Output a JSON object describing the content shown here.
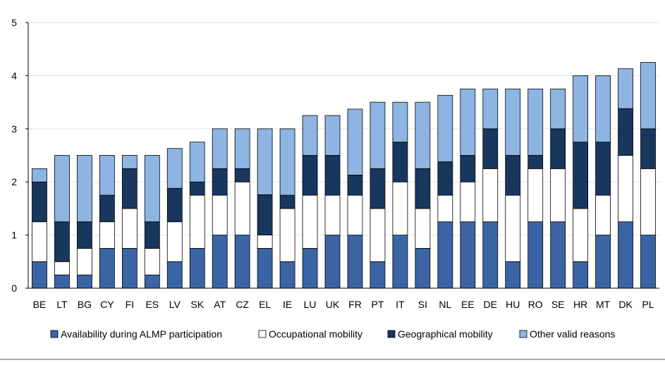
{
  "chart_data": {
    "type": "bar",
    "stacked": true,
    "title": "",
    "xlabel": "",
    "ylabel": "",
    "ylim": [
      0,
      5
    ],
    "yticks": [
      0,
      1,
      2,
      3,
      4,
      5
    ],
    "grid": true,
    "legend_position": "bottom",
    "categories": [
      "BE",
      "LT",
      "BG",
      "CY",
      "FI",
      "ES",
      "LV",
      "SK",
      "AT",
      "CZ",
      "EL",
      "IE",
      "LU",
      "UK",
      "FR",
      "PT",
      "IT",
      "SI",
      "NL",
      "EE",
      "DE",
      "HU",
      "RO",
      "SE",
      "HR",
      "MT",
      "DK",
      "PL"
    ],
    "series": [
      {
        "name": "Availability during ALMP participation",
        "color": "#3a64a4",
        "values": [
          0.5,
          0.25,
          0.25,
          0.75,
          0.75,
          0.25,
          0.5,
          0.75,
          1,
          1,
          0.75,
          0.5,
          0.75,
          1,
          1,
          0.5,
          1,
          0.75,
          1.25,
          1.25,
          1.25,
          0.5,
          1.25,
          1.25,
          0.5,
          1,
          1.25,
          1
        ]
      },
      {
        "name": "Occupational mobility",
        "color": "#ffffff",
        "values": [
          0.75,
          0.25,
          0.5,
          0.5,
          0.75,
          0.5,
          0.75,
          1,
          0.75,
          1,
          0.25,
          1,
          1,
          0.75,
          0.75,
          1,
          1,
          0.75,
          0.5,
          0.75,
          1,
          1.25,
          1,
          1,
          1,
          0.75,
          1.25,
          1.25
        ]
      },
      {
        "name": "Geographical mobility",
        "color": "#17375e",
        "values": [
          0.75,
          0.75,
          0.5,
          0.5,
          0.75,
          0.5,
          0.63,
          0.25,
          0.5,
          0.25,
          0.76,
          0.25,
          0.75,
          0.75,
          0.38,
          0.75,
          0.75,
          0.75,
          0.63,
          0.5,
          0.75,
          0.75,
          0.25,
          0.75,
          1.25,
          1,
          0.88,
          0.75
        ]
      },
      {
        "name": "Other valid reasons",
        "color": "#8eb4e3",
        "values": [
          0.25,
          1.25,
          1.25,
          0.75,
          0.25,
          1.25,
          0.75,
          0.75,
          0.75,
          0.75,
          1.24,
          1.25,
          0.75,
          0.75,
          1.24,
          1.25,
          0.75,
          1.25,
          1.25,
          1.25,
          0.75,
          1.25,
          1.25,
          0.75,
          1.25,
          1.25,
          0.75,
          1.25
        ]
      }
    ]
  }
}
